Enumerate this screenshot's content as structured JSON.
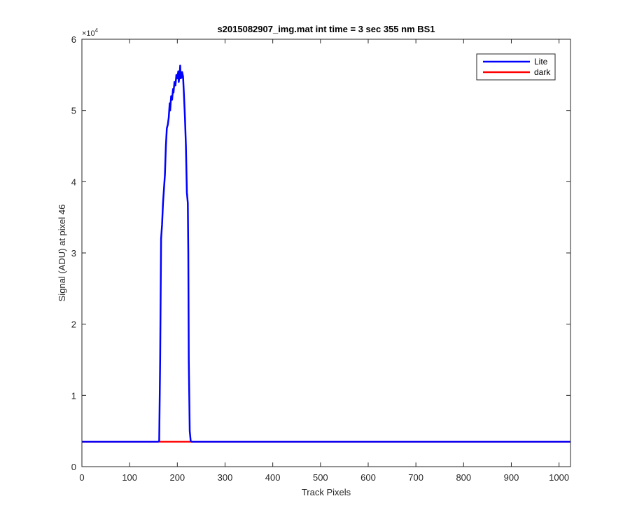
{
  "chart_data": {
    "type": "line",
    "title": "s2015082907_img.mat int time = 3 sec  355 nm BS1",
    "xlabel": "Track Pixels",
    "ylabel": "Signal (ADU) at pixel 46",
    "y_exponent_label": "×10",
    "y_exponent_power": "4",
    "xlim": [
      0,
      1024
    ],
    "ylim": [
      0,
      60000
    ],
    "x_ticks": [
      0,
      100,
      200,
      300,
      400,
      500,
      600,
      700,
      800,
      900,
      1000
    ],
    "x_tick_labels": [
      "0",
      "100",
      "200",
      "300",
      "400",
      "500",
      "600",
      "700",
      "800",
      "900",
      "1000"
    ],
    "y_ticks": [
      0,
      10000,
      20000,
      30000,
      40000,
      50000,
      60000
    ],
    "y_tick_labels": [
      "0",
      "1",
      "2",
      "3",
      "4",
      "5",
      "6"
    ],
    "grid": false,
    "legend_position": "top-right",
    "series": [
      {
        "name": "Lite",
        "color": "#0000ff",
        "points": [
          [
            0,
            3500
          ],
          [
            160,
            3500
          ],
          [
            162,
            3600
          ],
          [
            164,
            15000
          ],
          [
            166,
            32000
          ],
          [
            168,
            34000
          ],
          [
            170,
            37000
          ],
          [
            172,
            39000
          ],
          [
            174,
            41000
          ],
          [
            176,
            45000
          ],
          [
            178,
            47500
          ],
          [
            180,
            48000
          ],
          [
            182,
            49000
          ],
          [
            184,
            51000
          ],
          [
            185,
            50000
          ],
          [
            187,
            52000
          ],
          [
            189,
            51500
          ],
          [
            191,
            53000
          ],
          [
            192,
            52500
          ],
          [
            194,
            54000
          ],
          [
            196,
            53500
          ],
          [
            198,
            55000
          ],
          [
            200,
            54500
          ],
          [
            202,
            55500
          ],
          [
            203,
            54000
          ],
          [
            205,
            55200
          ],
          [
            206,
            56300
          ],
          [
            207,
            54500
          ],
          [
            208,
            55200
          ],
          [
            209,
            54600
          ],
          [
            210,
            55400
          ],
          [
            212,
            54800
          ],
          [
            214,
            52000
          ],
          [
            216,
            49000
          ],
          [
            218,
            45000
          ],
          [
            220,
            38500
          ],
          [
            222,
            37000
          ],
          [
            223,
            30000
          ],
          [
            224,
            15000
          ],
          [
            226,
            5000
          ],
          [
            228,
            3600
          ],
          [
            230,
            3500
          ],
          [
            1024,
            3500
          ]
        ]
      },
      {
        "name": "dark",
        "color": "#ff0000",
        "points": [
          [
            0,
            3500
          ],
          [
            1024,
            3500
          ]
        ]
      }
    ]
  }
}
